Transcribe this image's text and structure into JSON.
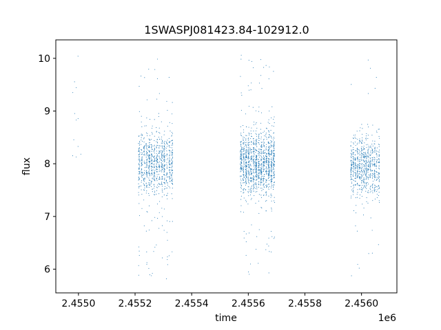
{
  "chart_data": {
    "type": "scatter",
    "title": "1SWASPJ081423.84-102912.0",
    "xlabel": "time",
    "ylabel": "flux",
    "x_offset_label": "1e6",
    "xlim": [
      2454870,
      2456075
    ],
    "ylim": [
      5.55,
      10.35
    ],
    "xticks": [
      2454950,
      2455150,
      2455350,
      2455550,
      2455750,
      2455950
    ],
    "xtick_labels": [
      "2.4550",
      "2.4552",
      "2.4554",
      "2.4556",
      "2.4558",
      "2.4560"
    ],
    "yticks": [
      6,
      7,
      8,
      9,
      10
    ],
    "ytick_labels": [
      "6",
      "7",
      "8",
      "9",
      "10"
    ],
    "grid": false,
    "marker_color": "#1f77b4",
    "seasons": [
      {
        "x_start": 2454915,
        "x_end": 2454960,
        "y_center": 8.7,
        "y_spread": 0.45,
        "count": 12,
        "outlier_frac": 0.0
      },
      {
        "x_start": 2455160,
        "x_end": 2455285,
        "y_center": 8.0,
        "y_spread": 0.32,
        "count": 900,
        "outlier_frac": 0.08
      },
      {
        "x_start": 2455520,
        "x_end": 2455645,
        "y_center": 8.0,
        "y_spread": 0.3,
        "count": 1300,
        "outlier_frac": 0.07
      },
      {
        "x_start": 2455910,
        "x_end": 2456015,
        "y_center": 7.95,
        "y_spread": 0.28,
        "count": 750,
        "outlier_frac": 0.04
      }
    ]
  }
}
